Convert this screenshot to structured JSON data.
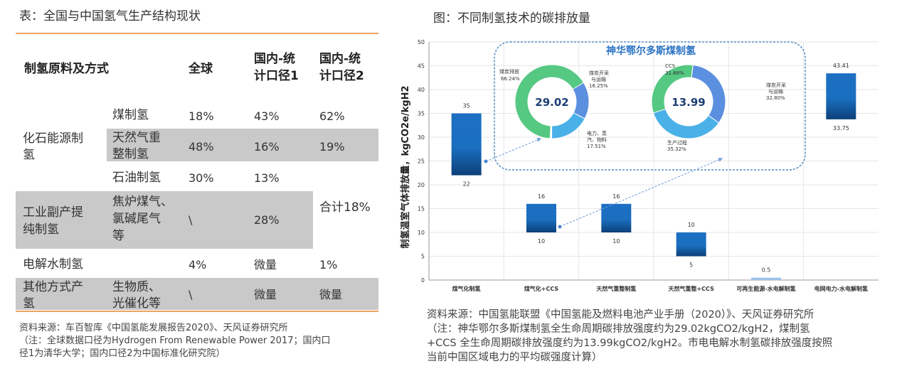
{
  "left": {
    "title": "表：全国与中国氢气生产结构现状",
    "headers": {
      "c1": "制氢原料及方式",
      "c3": "全球",
      "c4a": "国内-统",
      "c4b": "计口径1",
      "c5a": "国内-统",
      "c5b": "计口径2"
    },
    "groups": {
      "fossil_a": "化石能源制",
      "fossil_b": "氢",
      "industrial_a": "工业副产提",
      "industrial_b": "纯制氢",
      "electrolysis": "电解水制氢",
      "other_a": "其他方式产",
      "other_b": "氢"
    },
    "rows": {
      "coal": {
        "name": "煤制氢",
        "global": "18%",
        "cn1": "43%",
        "cn2": "62%"
      },
      "gas": {
        "name_a": "天然气重",
        "name_b": "整制氢",
        "global": "48%",
        "cn1": "16%",
        "cn2": "19%"
      },
      "oil": {
        "name": "石油制氢",
        "global": "30%",
        "cn1": "13%"
      },
      "coke": {
        "name_a": "焦炉煤气、",
        "name_b": "氯碱尾气",
        "name_c": "等",
        "global": "\\",
        "cn1": "28%",
        "cn2": "合计18%"
      },
      "elec": {
        "global": "4%",
        "cn1": "微量",
        "cn2": "1%"
      },
      "bio": {
        "name_a": "生物质、",
        "name_b": "光催化等",
        "global": "\\",
        "cn1": "微量",
        "cn2": "微量"
      }
    },
    "source": {
      "l1": "资料来源：车百智库《中国氢能发展报告2020》、天风证券研究所",
      "l2": "（注：全球数据口径为Hydrogen From Renewable Power 2017；国内口",
      "l3": "径1为清华大学；国内口径2为中国标准化研究院）"
    }
  },
  "right": {
    "title": "图：不同制氢技术的碳排放量",
    "source": {
      "l1": "资料来源：中国氢能联盟《中国氢能及燃料电池产业手册（2020）》、天风证券研究所",
      "l2": "（注：神华鄂尔多斯煤制氢全生命周期碳排放强度约为29.02kgCO2/kgH2，煤制氢",
      "l3": "+CCS 全生命周期碳排放强度约为13.99kgCO2/kgH2。市电电解水制氢碳排放强度按照",
      "l4": "当前中国区域电力的平均碳强度计算）"
    }
  },
  "chart_data": {
    "type": "bar",
    "subtype": "floating-range",
    "title": "",
    "ylabel": "制氢温室气体排放量，kgCO2e/kgH2",
    "ylim": [
      0,
      50
    ],
    "yticks": [
      "0",
      "5",
      "10",
      "15",
      "20",
      "25",
      "30",
      "35",
      "40",
      "45",
      "50"
    ],
    "categories": [
      "煤气化制氢",
      "煤气化+CCS",
      "天然气重整制氢",
      "天然气重整+CCS",
      "可再生能源-水电解制氢",
      "电网电力-水电解制氢"
    ],
    "low": [
      22,
      10,
      10,
      5,
      0,
      33.75
    ],
    "high": [
      35,
      16,
      16,
      10,
      0.5,
      43.41
    ],
    "low_labels": [
      "22",
      "10",
      "10",
      "5",
      "",
      ""
    ],
    "high_labels": [
      "35",
      "16",
      "16",
      "10",
      "0.5",
      "43.41"
    ],
    "extra_labels": {
      "last_low": "33.75"
    },
    "inset": {
      "title": "神华鄂尔多斯煤制氢",
      "donuts": [
        {
          "center": "29.02",
          "slices": [
            {
              "label": "煤炭排放",
              "pct": "66.24%",
              "value": 66.24,
              "color": "#55c882"
            },
            {
              "label": "煤炭开采与运输",
              "pct": "16.25%",
              "value": 16.25,
              "color": "#5b8fe0"
            },
            {
              "label": "电力、蒸汽、物料",
              "pct": "17.51%",
              "value": 17.51,
              "color": "#4ab0e8"
            }
          ],
          "labels": {
            "a1": "煤炭排放",
            "a2": "66.24%",
            "b1": "煤炭开采",
            "b2": "与运输",
            "b3": "16.25%",
            "c1": "电力、蒸",
            "c2": "汽、物料",
            "c3": "17.51%"
          }
        },
        {
          "center": "13.99",
          "slices": [
            {
              "label": "CCS",
              "pct": "31.88%",
              "value": 31.88,
              "color": "#55c882"
            },
            {
              "label": "煤炭开采与运输",
              "pct": "32.80%",
              "value": 32.8,
              "color": "#5b8fe0"
            },
            {
              "label": "生产过程",
              "pct": "35.32%",
              "value": 35.32,
              "color": "#4ab0e8"
            }
          ],
          "labels": {
            "a1": "CCS",
            "a2": "31.88%",
            "b1": "煤炭开采",
            "b2": "与运输",
            "b3": "32.80%",
            "c1": "生产过程",
            "c2": "35.32%"
          }
        }
      ]
    }
  }
}
